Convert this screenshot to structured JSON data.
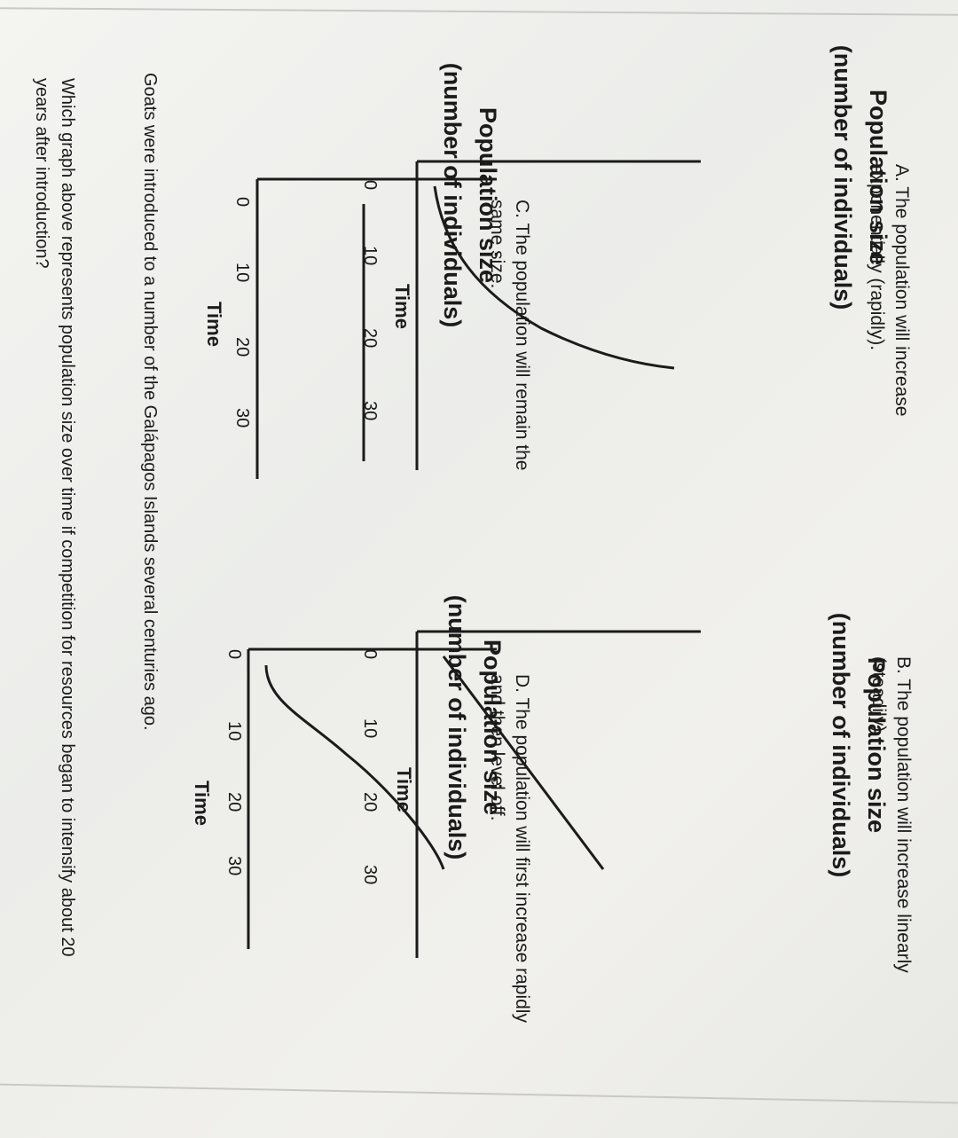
{
  "intro": "Goats were introduced to a number of the Galápagos Islands several centuries ago.",
  "question": "Which graph above represents population size over time if competition for resources began to intensify about 20 years after introduction?",
  "graphs": [
    {
      "id": "A",
      "ylabel_line1": "Population size",
      "ylabel_line2": "(number of individuals)",
      "xlabel": "Time",
      "ticks": [
        "0",
        "10",
        "20",
        "30"
      ],
      "option": "A.  The population will increase exponentially (rapidly).",
      "chart_data": {
        "type": "line",
        "shape": "exponential",
        "x": [
          0,
          10,
          20,
          30
        ]
      }
    },
    {
      "id": "B",
      "ylabel_line1": "Population size",
      "ylabel_line2": "(number of individuals)",
      "xlabel": "Time",
      "ticks": [
        "0",
        "10",
        "20",
        "30"
      ],
      "option": "B. The population will increase linearly (steadily).",
      "chart_data": {
        "type": "line",
        "shape": "linear",
        "x": [
          0,
          10,
          20,
          30
        ]
      }
    },
    {
      "id": "C",
      "ylabel_line1": "Population size",
      "ylabel_line2": "(number of individuals)",
      "xlabel": "Time",
      "ticks": [
        "0",
        "10",
        "20",
        "30"
      ],
      "option": "C. The population will remain the same size.",
      "chart_data": {
        "type": "line",
        "shape": "constant",
        "x": [
          0,
          10,
          20,
          30
        ]
      }
    },
    {
      "id": "D",
      "ylabel_line1": "Population size",
      "ylabel_line2": "(number of individuals)",
      "xlabel": "Time",
      "ticks": [
        "0",
        "10",
        "20",
        "30"
      ],
      "option": "D. The population will first increase rapidly and then level off.",
      "chart_data": {
        "type": "line",
        "shape": "logistic",
        "x": [
          0,
          10,
          20,
          30
        ]
      }
    }
  ]
}
